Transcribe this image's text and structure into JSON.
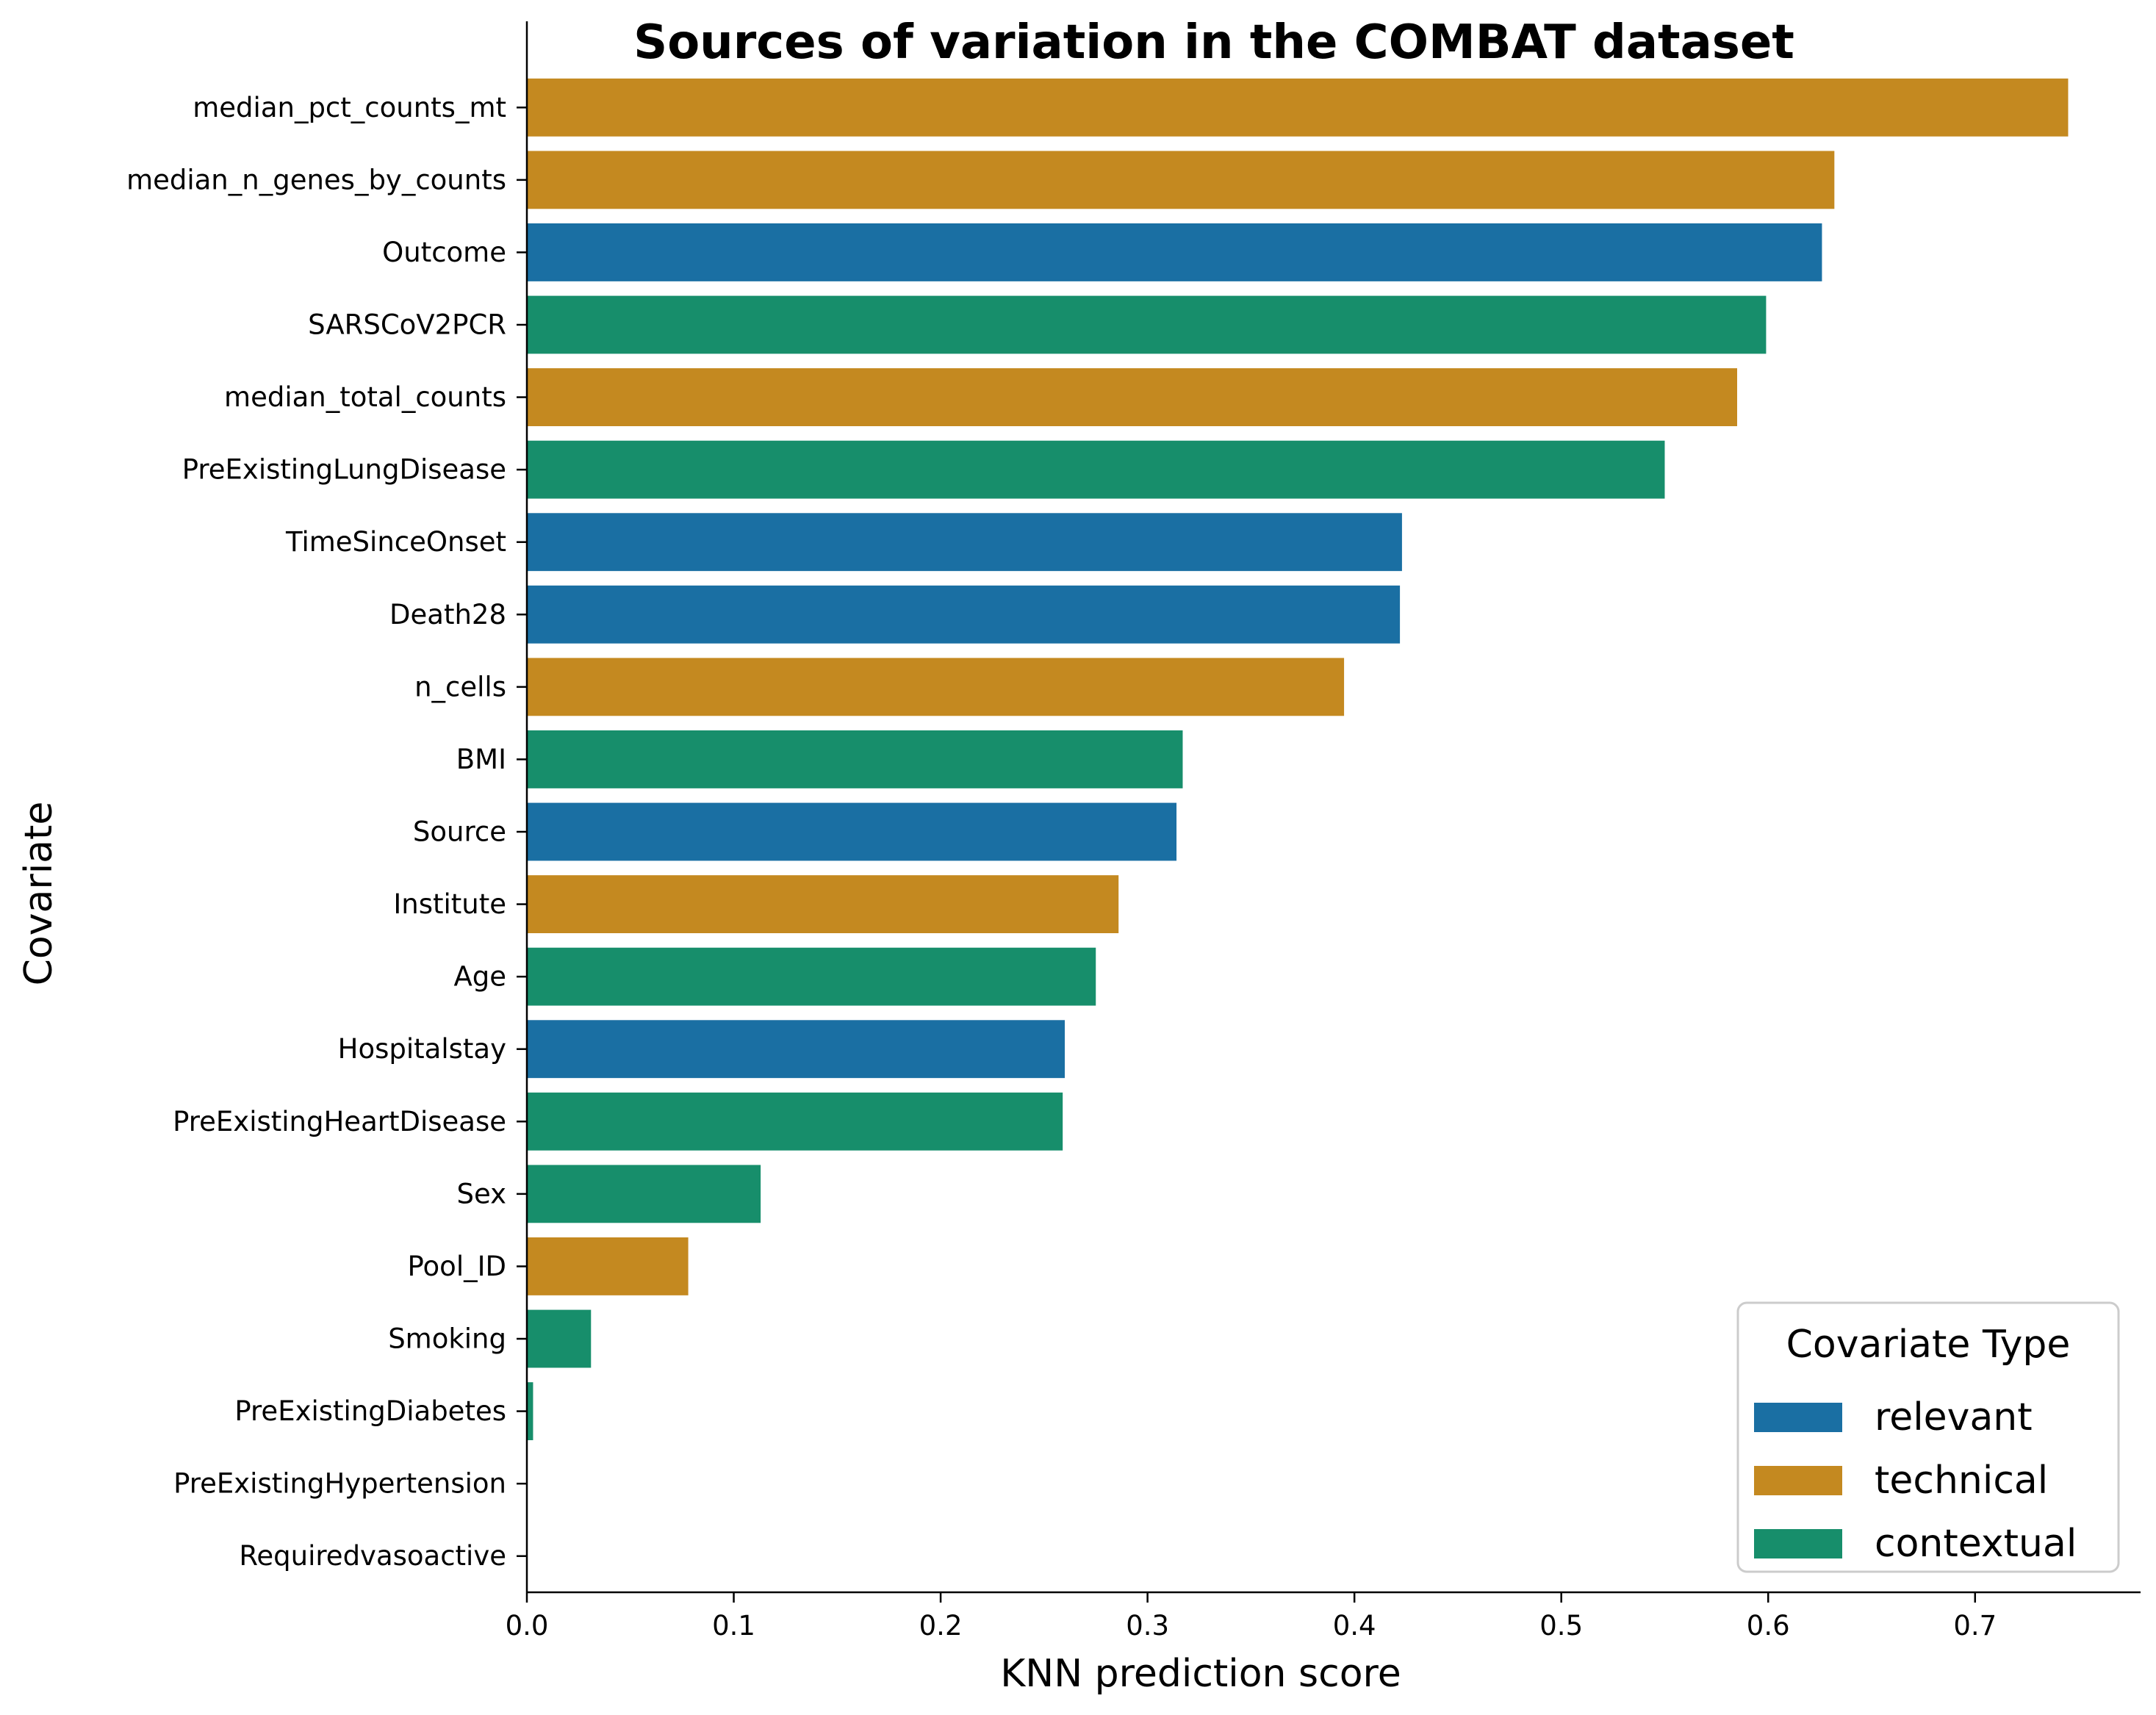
{
  "chart_data": {
    "type": "bar",
    "orientation": "horizontal",
    "title": "Sources of variation in the COMBAT dataset",
    "xlabel": "KNN prediction score",
    "ylabel": "Covariate",
    "xlim": [
      0,
      0.78
    ],
    "xticks": [
      0.0,
      0.1,
      0.2,
      0.3,
      0.4,
      0.5,
      0.6,
      0.7
    ],
    "xtick_labels": [
      "0.0",
      "0.1",
      "0.2",
      "0.3",
      "0.4",
      "0.5",
      "0.6",
      "0.7"
    ],
    "grid": false,
    "legend": {
      "title": "Covariate Type",
      "placement": "lower-right",
      "entries": [
        {
          "type": "relevant",
          "label": "relevant",
          "color": "#1a6fa3"
        },
        {
          "type": "technical",
          "label": "technical",
          "color": "#c48920"
        },
        {
          "type": "contextual",
          "label": "contextual",
          "color": "#178e6b"
        }
      ]
    },
    "bars": [
      {
        "category": "median_pct_counts_mt",
        "value": 0.745,
        "type": "technical"
      },
      {
        "category": "median_n_genes_by_counts",
        "value": 0.632,
        "type": "technical"
      },
      {
        "category": "Outcome",
        "value": 0.626,
        "type": "relevant"
      },
      {
        "category": "SARSCoV2PCR",
        "value": 0.599,
        "type": "contextual"
      },
      {
        "category": "median_total_counts",
        "value": 0.585,
        "type": "technical"
      },
      {
        "category": "PreExistingLungDisease",
        "value": 0.55,
        "type": "contextual"
      },
      {
        "category": "TimeSinceOnset",
        "value": 0.423,
        "type": "relevant"
      },
      {
        "category": "Death28",
        "value": 0.422,
        "type": "relevant"
      },
      {
        "category": "n_cells",
        "value": 0.395,
        "type": "technical"
      },
      {
        "category": "BMI",
        "value": 0.317,
        "type": "contextual"
      },
      {
        "category": "Source",
        "value": 0.314,
        "type": "relevant"
      },
      {
        "category": "Institute",
        "value": 0.286,
        "type": "technical"
      },
      {
        "category": "Age",
        "value": 0.275,
        "type": "contextual"
      },
      {
        "category": "Hospitalstay",
        "value": 0.26,
        "type": "relevant"
      },
      {
        "category": "PreExistingHeartDisease",
        "value": 0.259,
        "type": "contextual"
      },
      {
        "category": "Sex",
        "value": 0.113,
        "type": "contextual"
      },
      {
        "category": "Pool_ID",
        "value": 0.078,
        "type": "technical"
      },
      {
        "category": "Smoking",
        "value": 0.031,
        "type": "contextual"
      },
      {
        "category": "PreExistingDiabetes",
        "value": 0.003,
        "type": "contextual"
      },
      {
        "category": "PreExistingHypertension",
        "value": 0.0,
        "type": "contextual"
      },
      {
        "category": "Requiredvasoactive",
        "value": 0.0,
        "type": "contextual"
      }
    ]
  }
}
